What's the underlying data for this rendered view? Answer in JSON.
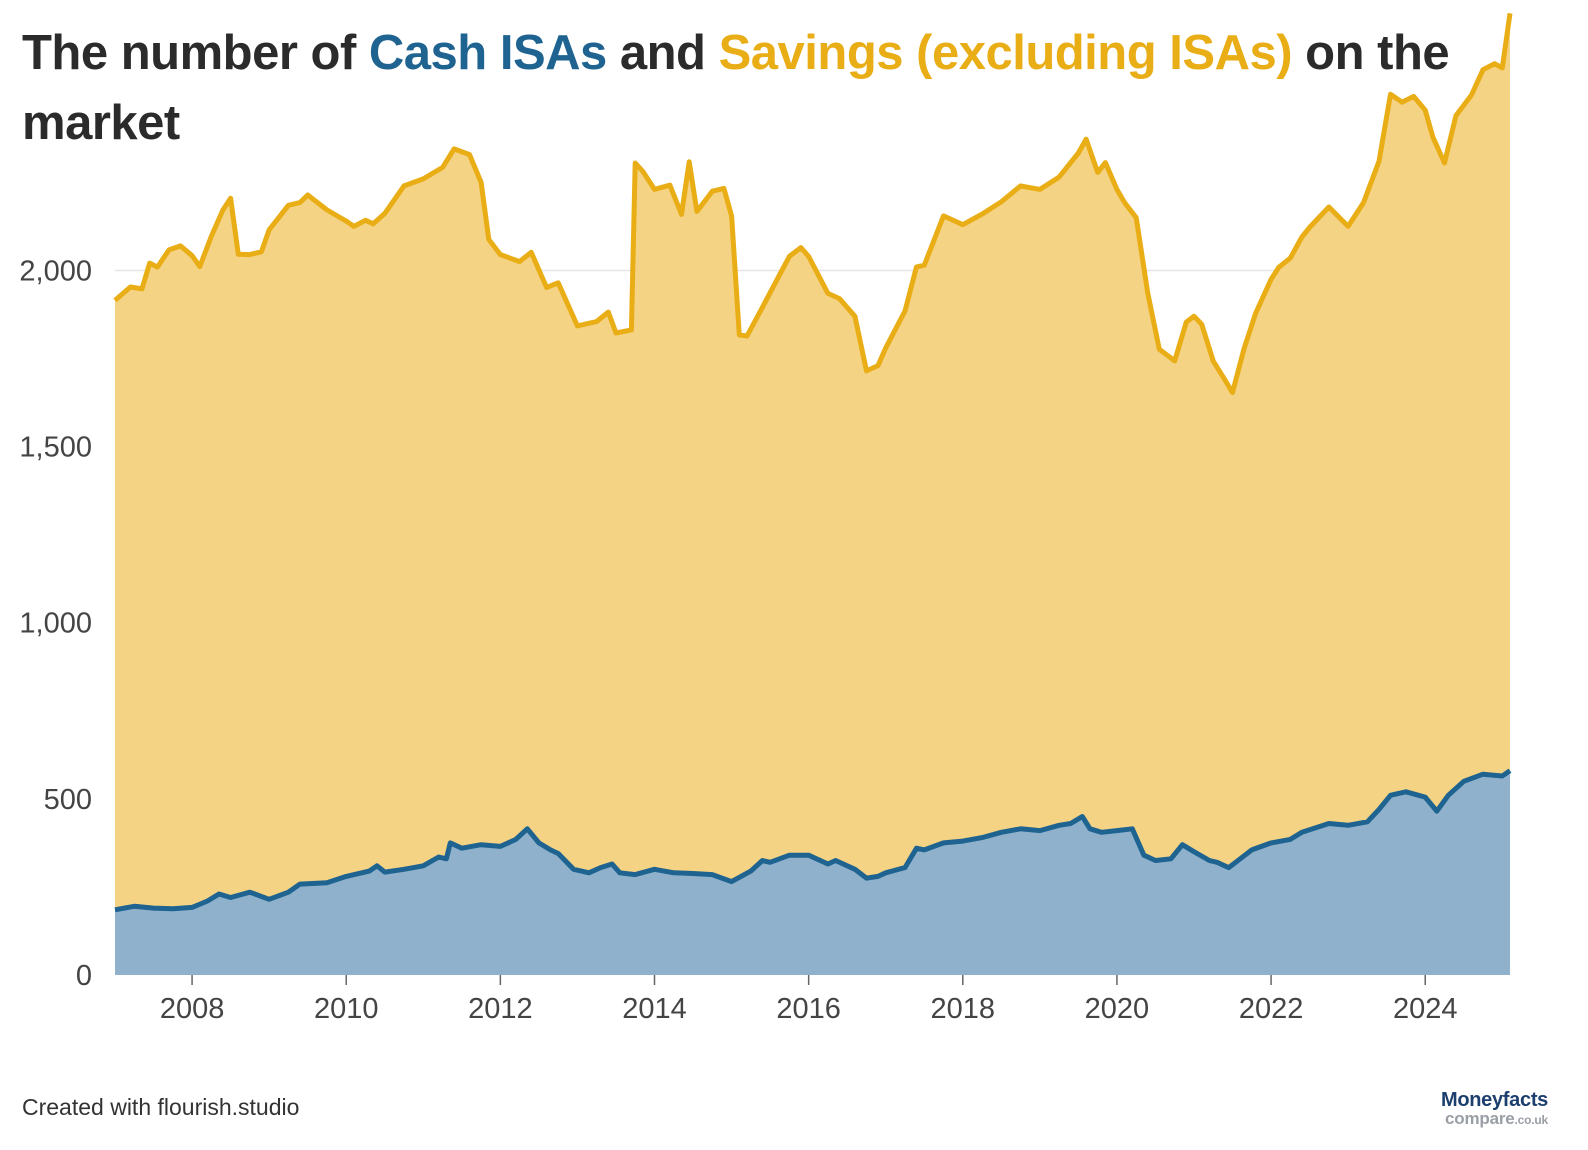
{
  "title": {
    "part1": "The number of ",
    "cash": "Cash ISAs",
    "part2": " and ",
    "savings": "Savings (excluding ISAs)",
    "part3": " on the market"
  },
  "footer": {
    "credit": "Created with flourish.studio"
  },
  "logo": {
    "line1": "Moneyfacts",
    "line2": "compare",
    "line2_suffix": ".co.uk"
  },
  "colors": {
    "cash_line": "#1f6391",
    "cash_fill": "#8fb1cb",
    "savings_line": "#e9ad15",
    "savings_fill": "#f5d384",
    "grid": "#e6e6e6"
  },
  "chart_data": {
    "type": "area",
    "stacked": true,
    "title": "The number of Cash ISAs and Savings (excluding ISAs) on the market",
    "xlabel": "",
    "ylabel": "",
    "xlim": [
      2007.0,
      2025.1
    ],
    "ylim": [
      0,
      2200
    ],
    "x_ticks": [
      2008,
      2010,
      2012,
      2014,
      2016,
      2018,
      2020,
      2022,
      2024
    ],
    "y_ticks": [
      {
        "value": 0,
        "label": "0"
      },
      {
        "value": 500,
        "label": "500"
      },
      {
        "value": 1000,
        "label": "1,000"
      },
      {
        "value": 1500,
        "label": "1,500"
      },
      {
        "value": 2000,
        "label": "2,000"
      }
    ],
    "grid": true,
    "legend": "none (series named in title)",
    "series": [
      {
        "name": "Cash ISAs",
        "color": "#1f6391",
        "points": [
          [
            2007.0,
            185
          ],
          [
            2007.25,
            195
          ],
          [
            2007.5,
            190
          ],
          [
            2007.75,
            188
          ],
          [
            2008.0,
            192
          ],
          [
            2008.2,
            210
          ],
          [
            2008.35,
            230
          ],
          [
            2008.5,
            220
          ],
          [
            2008.75,
            235
          ],
          [
            2009.0,
            215
          ],
          [
            2009.25,
            235
          ],
          [
            2009.4,
            258
          ],
          [
            2009.75,
            262
          ],
          [
            2010.0,
            280
          ],
          [
            2010.3,
            295
          ],
          [
            2010.4,
            310
          ],
          [
            2010.5,
            292
          ],
          [
            2010.75,
            300
          ],
          [
            2011.0,
            310
          ],
          [
            2011.2,
            335
          ],
          [
            2011.3,
            330
          ],
          [
            2011.35,
            375
          ],
          [
            2011.5,
            360
          ],
          [
            2011.75,
            370
          ],
          [
            2012.0,
            365
          ],
          [
            2012.2,
            385
          ],
          [
            2012.35,
            415
          ],
          [
            2012.5,
            375
          ],
          [
            2012.65,
            355
          ],
          [
            2012.75,
            345
          ],
          [
            2012.95,
            300
          ],
          [
            2013.15,
            290
          ],
          [
            2013.3,
            305
          ],
          [
            2013.45,
            315
          ],
          [
            2013.55,
            290
          ],
          [
            2013.75,
            285
          ],
          [
            2014.0,
            300
          ],
          [
            2014.25,
            290
          ],
          [
            2014.5,
            288
          ],
          [
            2014.75,
            285
          ],
          [
            2015.0,
            265
          ],
          [
            2015.25,
            295
          ],
          [
            2015.4,
            325
          ],
          [
            2015.5,
            320
          ],
          [
            2015.75,
            340
          ],
          [
            2016.0,
            340
          ],
          [
            2016.25,
            315
          ],
          [
            2016.35,
            325
          ],
          [
            2016.6,
            300
          ],
          [
            2016.75,
            275
          ],
          [
            2016.9,
            280
          ],
          [
            2017.0,
            290
          ],
          [
            2017.25,
            305
          ],
          [
            2017.4,
            360
          ],
          [
            2017.5,
            355
          ],
          [
            2017.75,
            375
          ],
          [
            2018.0,
            380
          ],
          [
            2018.25,
            390
          ],
          [
            2018.5,
            405
          ],
          [
            2018.75,
            415
          ],
          [
            2019.0,
            410
          ],
          [
            2019.25,
            425
          ],
          [
            2019.4,
            430
          ],
          [
            2019.55,
            450
          ],
          [
            2019.65,
            415
          ],
          [
            2019.8,
            405
          ],
          [
            2020.0,
            410
          ],
          [
            2020.2,
            415
          ],
          [
            2020.35,
            340
          ],
          [
            2020.5,
            325
          ],
          [
            2020.7,
            330
          ],
          [
            2020.85,
            370
          ],
          [
            2021.0,
            350
          ],
          [
            2021.2,
            325
          ],
          [
            2021.3,
            320
          ],
          [
            2021.45,
            305
          ],
          [
            2021.6,
            330
          ],
          [
            2021.75,
            355
          ],
          [
            2022.0,
            375
          ],
          [
            2022.25,
            385
          ],
          [
            2022.4,
            405
          ],
          [
            2022.75,
            430
          ],
          [
            2023.0,
            425
          ],
          [
            2023.25,
            435
          ],
          [
            2023.4,
            470
          ],
          [
            2023.55,
            510
          ],
          [
            2023.75,
            520
          ],
          [
            2024.0,
            505
          ],
          [
            2024.15,
            465
          ],
          [
            2024.3,
            510
          ],
          [
            2024.5,
            550
          ],
          [
            2024.75,
            570
          ],
          [
            2025.0,
            565
          ],
          [
            2025.1,
            580
          ]
        ]
      },
      {
        "name": "Savings (excluding ISAs)",
        "color": "#e9ad15",
        "points": [
          [
            2007.0,
            1730
          ],
          [
            2007.2,
            1760
          ],
          [
            2007.35,
            1755
          ],
          [
            2007.45,
            1830
          ],
          [
            2007.55,
            1820
          ],
          [
            2007.7,
            1870
          ],
          [
            2007.85,
            1880
          ],
          [
            2008.0,
            1850
          ],
          [
            2008.1,
            1810
          ],
          [
            2008.25,
            1880
          ],
          [
            2008.4,
            1945
          ],
          [
            2008.5,
            1985
          ],
          [
            2008.6,
            1820
          ],
          [
            2008.75,
            1810
          ],
          [
            2008.9,
            1830
          ],
          [
            2009.0,
            1900
          ],
          [
            2009.25,
            1950
          ],
          [
            2009.4,
            1935
          ],
          [
            2009.5,
            1955
          ],
          [
            2009.75,
            1910
          ],
          [
            2010.0,
            1860
          ],
          [
            2010.1,
            1840
          ],
          [
            2010.25,
            1850
          ],
          [
            2010.35,
            1830
          ],
          [
            2010.5,
            1870
          ],
          [
            2010.75,
            1940
          ],
          [
            2011.0,
            1950
          ],
          [
            2011.25,
            1960
          ],
          [
            2011.4,
            1975
          ],
          [
            2011.6,
            1965
          ],
          [
            2011.75,
            1880
          ],
          [
            2011.85,
            1720
          ],
          [
            2012.0,
            1680
          ],
          [
            2012.25,
            1630
          ],
          [
            2012.4,
            1650
          ],
          [
            2012.6,
            1590
          ],
          [
            2012.75,
            1620
          ],
          [
            2013.0,
            1545
          ],
          [
            2013.25,
            1555
          ],
          [
            2013.4,
            1570
          ],
          [
            2013.5,
            1520
          ],
          [
            2013.7,
            1545
          ],
          [
            2013.75,
            2020
          ],
          [
            2013.85,
            1990
          ],
          [
            2014.0,
            1930
          ],
          [
            2014.2,
            1950
          ],
          [
            2014.35,
            1870
          ],
          [
            2014.45,
            2020
          ],
          [
            2014.55,
            1880
          ],
          [
            2014.75,
            1940
          ],
          [
            2014.9,
            1960
          ],
          [
            2015.0,
            1890
          ],
          [
            2015.1,
            1540
          ],
          [
            2015.2,
            1525
          ],
          [
            2015.4,
            1570
          ],
          [
            2015.6,
            1650
          ],
          [
            2015.75,
            1700
          ],
          [
            2015.9,
            1725
          ],
          [
            2016.0,
            1700
          ],
          [
            2016.25,
            1620
          ],
          [
            2016.4,
            1600
          ],
          [
            2016.6,
            1570
          ],
          [
            2016.75,
            1440
          ],
          [
            2016.9,
            1450
          ],
          [
            2017.0,
            1490
          ],
          [
            2017.25,
            1580
          ],
          [
            2017.4,
            1650
          ],
          [
            2017.5,
            1660
          ],
          [
            2017.75,
            1780
          ],
          [
            2018.0,
            1750
          ],
          [
            2018.25,
            1770
          ],
          [
            2018.5,
            1790
          ],
          [
            2018.75,
            1825
          ],
          [
            2019.0,
            1820
          ],
          [
            2019.25,
            1840
          ],
          [
            2019.5,
            1890
          ],
          [
            2019.6,
            1940
          ],
          [
            2019.75,
            1870
          ],
          [
            2019.85,
            1900
          ],
          [
            2020.0,
            1820
          ],
          [
            2020.1,
            1780
          ],
          [
            2020.25,
            1760
          ],
          [
            2020.4,
            1600
          ],
          [
            2020.55,
            1450
          ],
          [
            2020.75,
            1400
          ],
          [
            2020.9,
            1490
          ],
          [
            2021.0,
            1520
          ],
          [
            2021.1,
            1510
          ],
          [
            2021.25,
            1420
          ],
          [
            2021.4,
            1380
          ],
          [
            2021.5,
            1340
          ],
          [
            2021.65,
            1440
          ],
          [
            2021.8,
            1520
          ],
          [
            2022.0,
            1600
          ],
          [
            2022.1,
            1630
          ],
          [
            2022.25,
            1650
          ],
          [
            2022.4,
            1690
          ],
          [
            2022.5,
            1710
          ],
          [
            2022.75,
            1750
          ],
          [
            2023.0,
            1700
          ],
          [
            2023.2,
            1760
          ],
          [
            2023.4,
            1840
          ],
          [
            2023.55,
            1990
          ],
          [
            2023.7,
            1960
          ],
          [
            2023.85,
            1980
          ],
          [
            2024.0,
            1950
          ],
          [
            2024.1,
            1900
          ],
          [
            2024.25,
            1810
          ],
          [
            2024.4,
            1910
          ],
          [
            2024.6,
            1940
          ],
          [
            2024.75,
            2000
          ],
          [
            2024.9,
            2020
          ],
          [
            2025.0,
            2010
          ],
          [
            2025.1,
            2150
          ]
        ]
      }
    ]
  }
}
